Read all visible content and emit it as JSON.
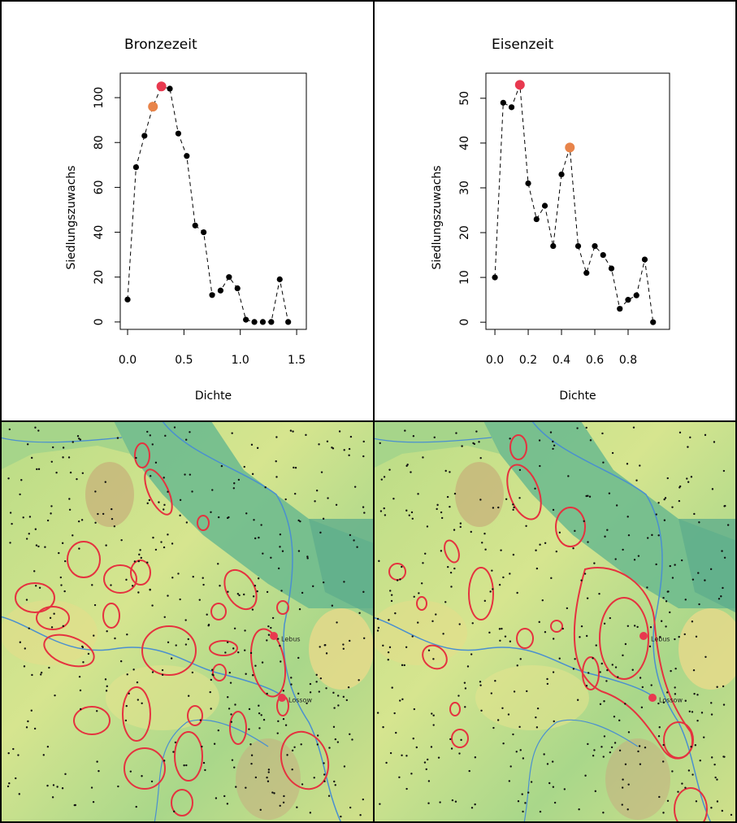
{
  "chart_data": [
    {
      "type": "line",
      "title": "Bronzezeit",
      "xlabel": "Dichte",
      "ylabel": "Siedlungszuwachs",
      "x": [
        0,
        0.075,
        0.15,
        0.225,
        0.3,
        0.375,
        0.45,
        0.525,
        0.6,
        0.675,
        0.75,
        0.825,
        0.9,
        0.975,
        1.05,
        1.125,
        1.2,
        1.275,
        1.35,
        1.425
      ],
      "series": [
        {
          "values": [
            10,
            69,
            83,
            96,
            105,
            104,
            84,
            74,
            43,
            40,
            12,
            14,
            20,
            15,
            1,
            0,
            0,
            0,
            19,
            0
          ],
          "colors": [
            "#000000",
            "#000000",
            "#000000",
            "#e8844a",
            "#e8394f",
            "#000000",
            "#000000",
            "#000000",
            "#000000",
            "#000000",
            "#000000",
            "#000000",
            "#000000",
            "#000000",
            "#000000",
            "#000000",
            "#000000",
            "#000000",
            "#000000",
            "#000000"
          ],
          "line_style": "dashed"
        }
      ],
      "xlim": [
        -0.065,
        1.586
      ],
      "ylim": [
        -3.3,
        110.9
      ],
      "xticks": [
        {
          "value": 0,
          "label": "0.0"
        },
        0.5,
        {
          "value": 1,
          "label": "1.0"
        },
        1.5
      ],
      "yticks": [
        0,
        20,
        40,
        60,
        80,
        100
      ]
    },
    {
      "type": "line",
      "title": "Eisenzeit",
      "xlabel": "Dichte",
      "ylabel": "Siedlungszuwachs",
      "x": [
        0,
        0.05,
        0.1,
        0.15,
        0.2,
        0.25,
        0.3,
        0.35,
        0.4,
        0.45,
        0.5,
        0.55,
        0.6,
        0.65,
        0.7,
        0.75,
        0.8,
        0.85,
        0.9,
        0.95
      ],
      "series": [
        {
          "values": [
            10,
            49,
            48,
            53,
            31,
            23,
            26,
            17,
            33,
            39,
            17,
            11,
            17,
            15,
            12,
            3,
            5,
            6,
            14,
            0
          ],
          "colors": [
            "#000000",
            "#000000",
            "#000000",
            "#e8394f",
            "#000000",
            "#000000",
            "#000000",
            "#000000",
            "#000000",
            "#e8844a",
            "#000000",
            "#000000",
            "#000000",
            "#000000",
            "#000000",
            "#000000",
            "#000000",
            "#000000",
            "#000000",
            "#000000"
          ],
          "line_style": "dashed"
        }
      ],
      "xlim": [
        -0.054,
        1.049
      ],
      "ylim": [
        -1.6,
        55.6
      ],
      "xticks": [
        {
          "value": 0,
          "label": "0.0"
        },
        0.2,
        0.4,
        0.6,
        0.8
      ],
      "yticks": [
        0,
        10,
        20,
        30,
        40,
        50
      ]
    }
  ],
  "maps": [
    {
      "places": [
        "Lebus",
        "Lossow"
      ]
    },
    {
      "places": [
        "Lebus",
        "Lossow"
      ]
    }
  ]
}
